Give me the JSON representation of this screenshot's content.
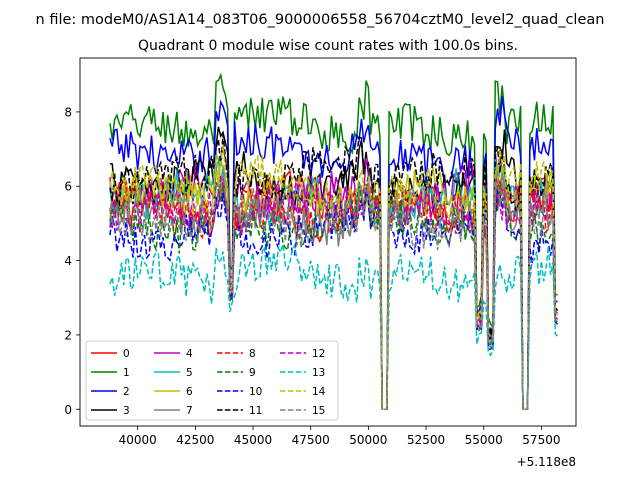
{
  "chart_data": {
    "type": "line",
    "suptitle": "n file: modeM0/AS1A14_083T06_9000006558_56704cztM0_level2_quad_clean",
    "title": "Quadrant 0 module wise count rates with 100.0s bins.",
    "xlabel": "",
    "ylabel": "",
    "x_offset_label": "+5.118e8",
    "xlim": [
      37500,
      59000
    ],
    "ylim": [
      -0.45,
      9.45
    ],
    "x_ticks": [
      40000,
      42500,
      45000,
      47500,
      50000,
      52500,
      55000,
      57500
    ],
    "x_tick_labels": [
      "40000",
      "42500",
      "45000",
      "47500",
      "50000",
      "52500",
      "55000",
      "57500"
    ],
    "y_ticks": [
      0,
      2,
      4,
      6,
      8
    ],
    "y_tick_labels": [
      "0",
      "2",
      "4",
      "6",
      "8"
    ],
    "grid": false,
    "legend_position": "lower-left",
    "legend_columns": 4,
    "x_range": [
      38800,
      58200
    ],
    "bin": 100,
    "gaps": [
      [
        50550,
        50850
      ],
      [
        56650,
        56950
      ]
    ],
    "dips": [
      [
        44050,
        2.6
      ],
      [
        54800,
        1.8
      ],
      [
        55300,
        1.3
      ],
      [
        58200,
        2.0
      ]
    ],
    "series": [
      {
        "name": "0",
        "color": "#ff0000",
        "dash": "solid",
        "mean": 5.5
      },
      {
        "name": "1",
        "color": "#008000",
        "dash": "solid",
        "mean": 7.6
      },
      {
        "name": "2",
        "color": "#0000ff",
        "dash": "solid",
        "mean": 6.9
      },
      {
        "name": "3",
        "color": "#000000",
        "dash": "solid",
        "mean": 6.1
      },
      {
        "name": "4",
        "color": "#bf00bf",
        "dash": "solid",
        "mean": 5.8
      },
      {
        "name": "5",
        "color": "#00bfbf",
        "dash": "solid",
        "mean": 5.6
      },
      {
        "name": "6",
        "color": "#bfbf00",
        "dash": "solid",
        "mean": 5.7
      },
      {
        "name": "7",
        "color": "#808080",
        "dash": "solid",
        "mean": 5.2
      },
      {
        "name": "8",
        "color": "#ff0000",
        "dash": "dashed",
        "mean": 5.3
      },
      {
        "name": "9",
        "color": "#008000",
        "dash": "dashed",
        "mean": 5.0
      },
      {
        "name": "10",
        "color": "#0000ff",
        "dash": "dashed",
        "mean": 4.8
      },
      {
        "name": "11",
        "color": "#000000",
        "dash": "dashed",
        "mean": 6.3
      },
      {
        "name": "12",
        "color": "#bf00bf",
        "dash": "dashed",
        "mean": 5.4
      },
      {
        "name": "13",
        "color": "#00bfbf",
        "dash": "dashed",
        "mean": 3.6
      },
      {
        "name": "14",
        "color": "#bfbf00",
        "dash": "dashed",
        "mean": 5.9
      },
      {
        "name": "15",
        "color": "#808080",
        "dash": "dashed",
        "mean": 5.1
      }
    ]
  }
}
